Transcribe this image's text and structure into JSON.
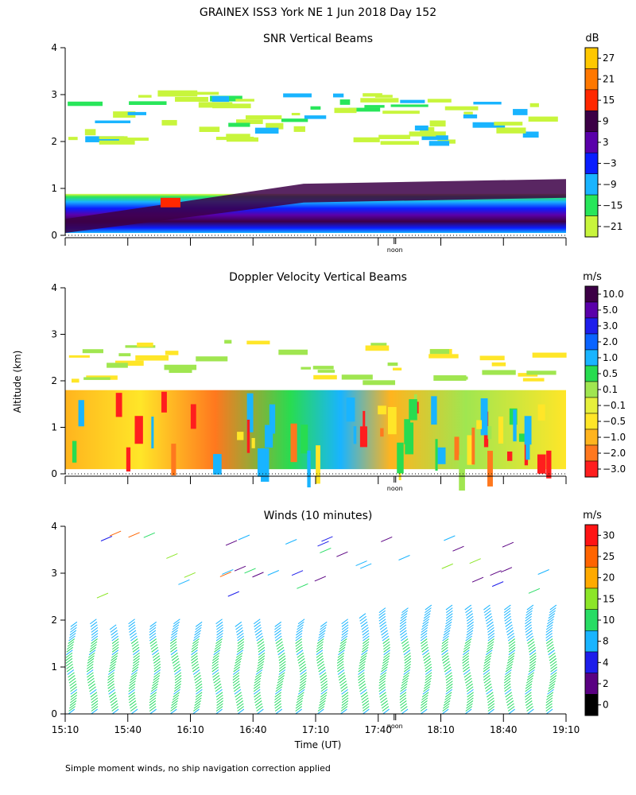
{
  "header": {
    "title": "GRAINEX ISS3 York NE    1 Jun 2018 Day 152"
  },
  "footer_note": "Simple moment winds, no ship navigation correction applied",
  "y_axis_label": "Altitude (km)",
  "x_axis_label": "Time (UT)",
  "time_ticks": [
    "15:10",
    "15:40",
    "16:10",
    "16:40",
    "17:10",
    "17:40",
    "18:10",
    "18:40",
    "19:10"
  ],
  "noon_label": "noon",
  "chart_data": [
    {
      "type": "heatmap",
      "title": "SNR Vertical Beams",
      "units": "dB",
      "ylim": [
        0,
        4
      ],
      "y_ticks": [
        "0",
        "1",
        "2",
        "3",
        "4"
      ],
      "colorbar_levels": [
        "27",
        "21",
        "15",
        "9",
        "3",
        "−3",
        "−9",
        "−15",
        "−21"
      ],
      "colorbar_colors": [
        "#ffc800",
        "#ff7800",
        "#ff2800",
        "#3c0046",
        "#5a00aa",
        "#0a1eff",
        "#19b4ff",
        "#28e65a",
        "#c8f53c"
      ],
      "gradient": [
        {
          "alt": 0.1,
          "value": 3
        },
        {
          "alt": 0.7,
          "value": 7
        },
        {
          "alt": 1.2,
          "value": 0
        },
        {
          "alt": 1.5,
          "value": -6
        },
        {
          "alt": 1.75,
          "value": -13
        },
        {
          "alt": 2.2,
          "value": -19
        }
      ],
      "grid": false
    },
    {
      "type": "heatmap",
      "title": "Doppler Velocity Vertical Beams",
      "units": "m/s",
      "ylim": [
        0,
        4
      ],
      "y_ticks": [
        "0",
        "1",
        "2",
        "3",
        "4"
      ],
      "colorbar_levels": [
        "10.0",
        "5.0",
        "3.0",
        "2.0",
        "1.0",
        "0.5",
        "0.1",
        "−0.1",
        "−0.5",
        "−1.0",
        "−2.0",
        "−3.0"
      ],
      "colorbar_colors": [
        "#3c0046",
        "#5a00aa",
        "#1e1eeb",
        "#0a64ff",
        "#19b4ff",
        "#28dc50",
        "#a0e650",
        "#e6f03c",
        "#ffe628",
        "#ffb41e",
        "#ff781e",
        "#ff1e1e"
      ],
      "grid": false
    },
    {
      "type": "scatter",
      "title": "Winds (10 minutes)",
      "units": "m/s",
      "ylim": [
        0,
        4
      ],
      "y_ticks": [
        "0",
        "1",
        "2",
        "3",
        "4"
      ],
      "colorbar_levels": [
        "30",
        "25",
        "20",
        "15",
        "10",
        "8",
        "4",
        "2",
        "0"
      ],
      "colorbar_colors": [
        "#ff1414",
        "#ff6400",
        "#ffaa00",
        "#8ce628",
        "#28dc64",
        "#19b4ff",
        "#1e1eeb",
        "#5a0082",
        "#000000"
      ],
      "columns": [
        {
          "time": "15:13",
          "top_alt": 1.9
        },
        {
          "time": "15:23",
          "top_alt": 1.95
        },
        {
          "time": "15:33",
          "top_alt": 1.85
        },
        {
          "time": "15:43",
          "top_alt": 1.95
        },
        {
          "time": "15:53",
          "top_alt": 1.9
        },
        {
          "time": "16:03",
          "top_alt": 1.95
        },
        {
          "time": "16:13",
          "top_alt": 1.9
        },
        {
          "time": "16:23",
          "top_alt": 1.95
        },
        {
          "time": "16:33",
          "top_alt": 1.9
        },
        {
          "time": "16:43",
          "top_alt": 1.95
        },
        {
          "time": "16:53",
          "top_alt": 1.9
        },
        {
          "time": "17:03",
          "top_alt": 1.95
        },
        {
          "time": "17:13",
          "top_alt": 1.9
        },
        {
          "time": "17:23",
          "top_alt": 1.95
        },
        {
          "time": "17:33",
          "top_alt": 2.1
        },
        {
          "time": "17:43",
          "top_alt": 2.2
        },
        {
          "time": "17:53",
          "top_alt": 2.2
        },
        {
          "time": "18:03",
          "top_alt": 2.3
        },
        {
          "time": "18:13",
          "top_alt": 2.3
        },
        {
          "time": "18:23",
          "top_alt": 2.3
        },
        {
          "time": "18:33",
          "top_alt": 2.3
        },
        {
          "time": "18:43",
          "top_alt": 2.3
        },
        {
          "time": "18:53",
          "top_alt": 2.3
        },
        {
          "time": "19:03",
          "top_alt": 2.3
        }
      ],
      "grid": false
    }
  ]
}
